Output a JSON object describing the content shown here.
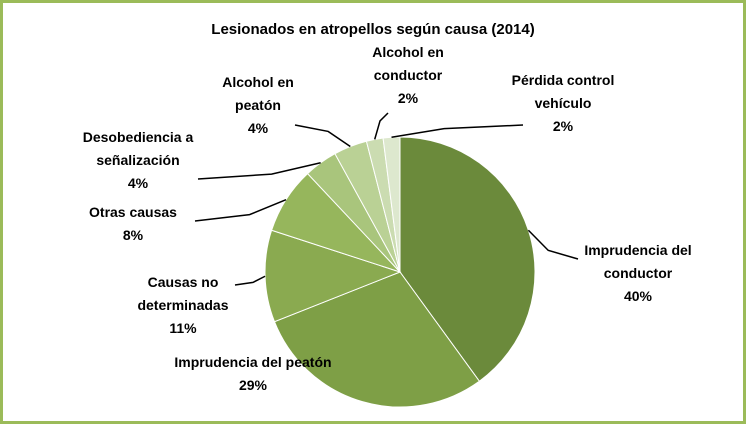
{
  "chart_data": {
    "type": "pie",
    "title": "Lesionados en atropellos según causa (2014)",
    "categories": [
      "Imprudencia del conductor",
      "Imprudencia del peatón",
      "Causas no determinadas",
      "Otras causas",
      "Desobediencia a señalización",
      "Alcohol en peatón",
      "Alcohol en conductor",
      "Pérdida control vehículo"
    ],
    "values": [
      40,
      29,
      11,
      8,
      4,
      4,
      2,
      2
    ],
    "value_labels": [
      "40%",
      "29%",
      "11%",
      "8%",
      "4%",
      "4%",
      "2%",
      "2%"
    ],
    "colors": [
      "#6b8a3b",
      "#7e9f46",
      "#8aaa50",
      "#96b65c",
      "#a9c57c",
      "#bad195",
      "#cbdcb1",
      "#dde8ce"
    ]
  }
}
